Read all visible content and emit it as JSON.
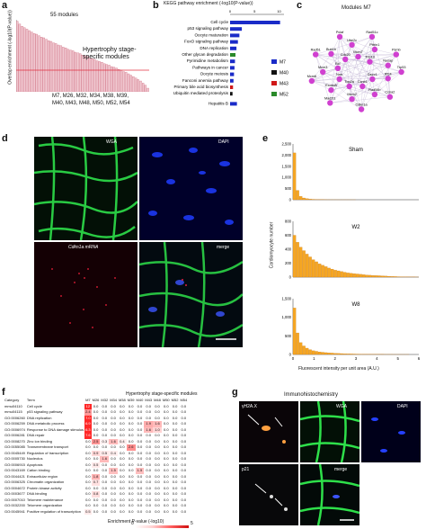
{
  "panels": {
    "a": {
      "letter": "a",
      "modules_count_label": "55 modules",
      "ylabel": "Overlap enrichment (-log10(P-value))",
      "annotation": "Hypertrophy stage-specific modules",
      "module_names_line1": "M7, M26, M32, M34, M38, M39,",
      "module_names_line2": "M40, M43, M48, M50, M52, M54"
    },
    "b": {
      "letter": "b",
      "title": "KEGG pathway enrichment (-log10(P-value))",
      "ticks": [
        "0",
        "5",
        "10"
      ],
      "legend": [
        {
          "label": "M7",
          "color": "#1a2bc8"
        },
        {
          "label": "M40",
          "color": "#111111"
        },
        {
          "label": "M43",
          "color": "#d01818"
        },
        {
          "label": "M52",
          "color": "#2a8a2a"
        }
      ]
    },
    "c": {
      "letter": "c",
      "title": "Modules M7",
      "genes": [
        "Trp53",
        "Rfc4",
        "Dscc1",
        "Ccna2",
        "Rad54b",
        "Ccnb1",
        "Cdkn1a",
        "Mcm2",
        "Top2a",
        "Mad2l1",
        "Exosc8",
        "Nrm",
        "Mcm6",
        "Mcm3",
        "Bcl",
        "Rad51",
        "Bub1b",
        "Cdc20",
        "Pclaf",
        "Ube2c",
        "Mcm7",
        "Rad51c",
        "Pttrin1",
        "Trip13",
        "Psmb",
        "Nusap"
      ]
    },
    "d": {
      "letter": "d",
      "labels": [
        "WGA",
        "DAPI",
        "Cdkn1a mRNA",
        "merge"
      ]
    },
    "e": {
      "letter": "e",
      "ylabel": "Cardiomyocyte number",
      "xlabel": "Fluorescent intensity per unit area (A.U.)",
      "color": "#f5a623"
    },
    "f": {
      "letter": "f",
      "header_title": "Hypertrophy stage-specific modules",
      "col_category": "Category",
      "col_term": "Term",
      "legend_label": "Enrichment P-value (-log10)",
      "legend_min": "0",
      "legend_max": "5"
    },
    "g": {
      "letter": "g",
      "title": "Immunohistochemistry",
      "labels": [
        "γH2A.X",
        "WGA",
        "DAPI",
        "p21",
        "merge"
      ]
    }
  },
  "chart_data": [
    {
      "panel": "a",
      "type": "bar",
      "ylabel": "Overlap enrichment (-log10(P-value))",
      "values": [
        9.8,
        9.4,
        9.1,
        8.9,
        8.7,
        8.5,
        8.3,
        8.1,
        8.0,
        7.8,
        7.6,
        7.5,
        7.3,
        7.1,
        7.0,
        6.8,
        6.7,
        6.5,
        6.4,
        6.2,
        6.1,
        5.9,
        5.8,
        5.7,
        5.5,
        5.4,
        5.3,
        5.1,
        5.0,
        4.9,
        4.7,
        4.6,
        4.5,
        4.3,
        4.2,
        4.1,
        3.9,
        3.8,
        3.7,
        3.5,
        3.4,
        3.3,
        3.1,
        3.0,
        2.8,
        2.7,
        2.5,
        2.3,
        2.1,
        1.9,
        1.7,
        1.5,
        1.2,
        0.9,
        0.5
      ],
      "threshold": 3.0,
      "ylim": [
        0,
        10
      ],
      "bar_color": "#f0c8d0",
      "threshold_color": "#e03040"
    },
    {
      "panel": "b",
      "type": "bar",
      "orientation": "horizontal",
      "categories": [
        "Cell cycle",
        "p53 signaling pathway",
        "Oocyte maturation",
        "FoxO signaling pathway",
        "DNA replication",
        "Other glycan degradation",
        "Pyrimidine metabolism",
        "Pathways in cancer",
        "Oocyte meiosis",
        "Fanconi anemia pathway",
        "Primary bile acid biosynthesis",
        "Ubiquitin mediated proteolysis",
        "Hepatitis B"
      ],
      "values": [
        10.2,
        2.4,
        1.9,
        1.6,
        1.3,
        1.1,
        1.0,
        0.9,
        0.8,
        0.7,
        0.6,
        0.5,
        1.4
      ],
      "series_module": [
        "M7",
        "M7",
        "M7",
        "M7",
        "M7",
        "M52",
        "M7",
        "M7",
        "M7",
        "M7",
        "M43",
        "M40",
        "M7"
      ],
      "xlim": [
        0,
        11
      ]
    },
    {
      "panel": "e",
      "type": "bar",
      "subplots": [
        {
          "title": "Sham",
          "yticks": [
            "0",
            "500",
            "1,000",
            "1,500",
            "2,000",
            "2,500"
          ],
          "ylim": [
            0,
            2500
          ],
          "values": [
            2100,
            420,
            150,
            80,
            50,
            30,
            20,
            12,
            8,
            6,
            4,
            3,
            2,
            2,
            1,
            1,
            1,
            1,
            1,
            1,
            0,
            0,
            0,
            0,
            0,
            0,
            0,
            0,
            0,
            0,
            0,
            0,
            0,
            0,
            0,
            0,
            0,
            0,
            0,
            0
          ]
        },
        {
          "title": "W2",
          "yticks": [
            "0",
            "200",
            "400",
            "600",
            "800"
          ],
          "ylim": [
            0,
            800
          ],
          "values": [
            600,
            500,
            430,
            380,
            330,
            290,
            250,
            220,
            190,
            170,
            150,
            130,
            115,
            100,
            90,
            80,
            70,
            60,
            55,
            50,
            45,
            40,
            35,
            30,
            27,
            24,
            22,
            20,
            18,
            15,
            12,
            10,
            8,
            6,
            5,
            4,
            3,
            2,
            2,
            1
          ]
        },
        {
          "title": "W8",
          "yticks": [
            "0",
            "500",
            "1,000",
            "1,500"
          ],
          "ylim": [
            0,
            1500
          ],
          "values": [
            1250,
            580,
            320,
            230,
            170,
            130,
            100,
            85,
            70,
            60,
            50,
            44,
            38,
            32,
            28,
            24,
            20,
            17,
            15,
            13,
            11,
            9,
            8,
            7,
            6,
            5,
            4,
            3,
            3,
            2,
            2,
            2,
            1,
            1,
            1,
            1,
            1,
            0,
            0,
            0
          ]
        }
      ],
      "xticks": [
        "0",
        "1",
        "2",
        "3",
        "4",
        "5",
        "6"
      ],
      "xlim": [
        0,
        6
      ]
    },
    {
      "panel": "f",
      "type": "heatmap",
      "columns": [
        "M7",
        "M26",
        "M32",
        "M34",
        "M38",
        "M39",
        "M40",
        "M43",
        "M48",
        "M50",
        "M52",
        "M54"
      ],
      "rows": [
        {
          "category": "mmu04110",
          "term": "Cell cycle",
          "values": [
            "12",
            "0.0",
            "0.0",
            "0.0",
            "0.0",
            "0.0",
            "0.0",
            "0.0",
            "0.0",
            "0.0",
            "0.0",
            "0.0"
          ]
        },
        {
          "category": "mmu04115",
          "term": "p53 signaling pathway",
          "values": [
            "2.4",
            "0.0",
            "0.0",
            "0.0",
            "0.0",
            "0.0",
            "0.0",
            "0.0",
            "0.0",
            "0.0",
            "0.0",
            "0.0"
          ]
        },
        {
          "category": "GO:0006260",
          "term": "DNA replication",
          "values": [
            "7.0",
            "0.0",
            "0.0",
            "0.0",
            "0.0",
            "0.0",
            "0.0",
            "0.0",
            "0.0",
            "0.0",
            "0.0",
            "0.0"
          ]
        },
        {
          "category": "GO:0006259",
          "term": "DNA metabolic process",
          "values": [
            "6.9",
            "0.0",
            "0.0",
            "0.0",
            "0.0",
            "0.0",
            "0.0",
            "1.9",
            "1.6",
            "0.0",
            "0.0",
            "0.0"
          ]
        },
        {
          "category": "GO:0006974",
          "term": "Response to DNA damage stimulus",
          "values": [
            "6.3",
            "0.0",
            "0.0",
            "0.0",
            "0.0",
            "0.0",
            "0.0",
            "1.6",
            "1.0",
            "0.0",
            "0.0",
            "0.0"
          ]
        },
        {
          "category": "GO:0006281",
          "term": "DNA repair",
          "values": [
            "7.6",
            "0.0",
            "0.0",
            "0.0",
            "0.0",
            "0.0",
            "0.0",
            "0.0",
            "0.0",
            "0.0",
            "0.0",
            "0.0"
          ]
        },
        {
          "category": "GO:0008270",
          "term": "Zinc ion binding",
          "values": [
            "0.0",
            "2.5",
            "0.3",
            "1.6",
            "0.4",
            "0.0",
            "0.0",
            "0.0",
            "0.0",
            "0.0",
            "0.0",
            "0.0"
          ]
        },
        {
          "category": "GO:0055085",
          "term": "Transmembrane transport",
          "values": [
            "0.0",
            "0.0",
            "0.0",
            "0.0",
            "0.0",
            "2.6",
            "0.0",
            "0.0",
            "0.0",
            "0.0",
            "0.0",
            "0.0"
          ]
        },
        {
          "category": "GO:0045449",
          "term": "Regulation of transcription",
          "values": [
            "0.0",
            "0.9",
            "0.5",
            "0.4",
            "0.0",
            "0.0",
            "0.0",
            "0.0",
            "0.0",
            "0.0",
            "0.0",
            "0.0"
          ]
        },
        {
          "category": "GO:0005730",
          "term": "Nucleolus",
          "values": [
            "0.0",
            "0.0",
            "1.6",
            "0.0",
            "0.0",
            "0.0",
            "0.0",
            "0.0",
            "0.0",
            "0.0",
            "0.0",
            "0.0"
          ]
        },
        {
          "category": "GO:0006915",
          "term": "Apoptosis",
          "values": [
            "0.0",
            "0.5",
            "0.0",
            "0.0",
            "0.0",
            "0.0",
            "0.0",
            "0.0",
            "0.0",
            "0.0",
            "0.0",
            "0.0"
          ]
        },
        {
          "category": "GO:0043169",
          "term": "Cation binding",
          "values": [
            "0.0",
            "0.0",
            "0.0",
            "1.5",
            "0.0",
            "0.0",
            "1.5",
            "0.0",
            "0.0",
            "0.0",
            "0.0",
            "0.0"
          ]
        },
        {
          "category": "GO:0044421",
          "term": "Extracellular region",
          "values": [
            "0.0",
            "1.8",
            "0.0",
            "0.0",
            "0.0",
            "0.0",
            "0.0",
            "0.0",
            "0.0",
            "0.0",
            "0.0",
            "0.0"
          ]
        },
        {
          "category": "GO:0006325",
          "term": "Chromatin organization",
          "values": [
            "0.0",
            "0.7",
            "0.0",
            "0.0",
            "0.0",
            "0.0",
            "0.0",
            "0.0",
            "0.0",
            "0.0",
            "0.0",
            "0.0"
          ]
        },
        {
          "category": "GO:0004672",
          "term": "Protein kinase activity",
          "values": [
            "0.0",
            "0.0",
            "0.0",
            "0.0",
            "0.0",
            "0.0",
            "0.0",
            "0.0",
            "0.0",
            "0.0",
            "0.0",
            "0.0"
          ]
        },
        {
          "category": "GO:0003677",
          "term": "DNA binding",
          "values": [
            "0.0",
            "0.8",
            "0.0",
            "0.0",
            "0.0",
            "0.0",
            "0.0",
            "0.0",
            "0.0",
            "0.0",
            "0.0",
            "0.0"
          ]
        },
        {
          "category": "GO:0007010",
          "term": "Telomere maintenance",
          "values": [
            "0.0",
            "0.0",
            "0.0",
            "0.0",
            "0.0",
            "0.0",
            "0.0",
            "0.0",
            "0.0",
            "0.0",
            "0.0",
            "0.0"
          ]
        },
        {
          "category": "GO:0032200",
          "term": "Telomere organization",
          "values": [
            "0.0",
            "0.0",
            "0.0",
            "0.0",
            "0.0",
            "0.0",
            "0.0",
            "0.0",
            "0.0",
            "0.0",
            "0.0",
            "0.0"
          ]
        },
        {
          "category": "GO:0045941",
          "term": "Positive regulation of transcription",
          "values": [
            "0.5",
            "0.0",
            "0.0",
            "0.0",
            "0.0",
            "0.0",
            "0.0",
            "0.0",
            "0.0",
            "0.0",
            "0.0",
            "0.0"
          ]
        }
      ]
    }
  ]
}
